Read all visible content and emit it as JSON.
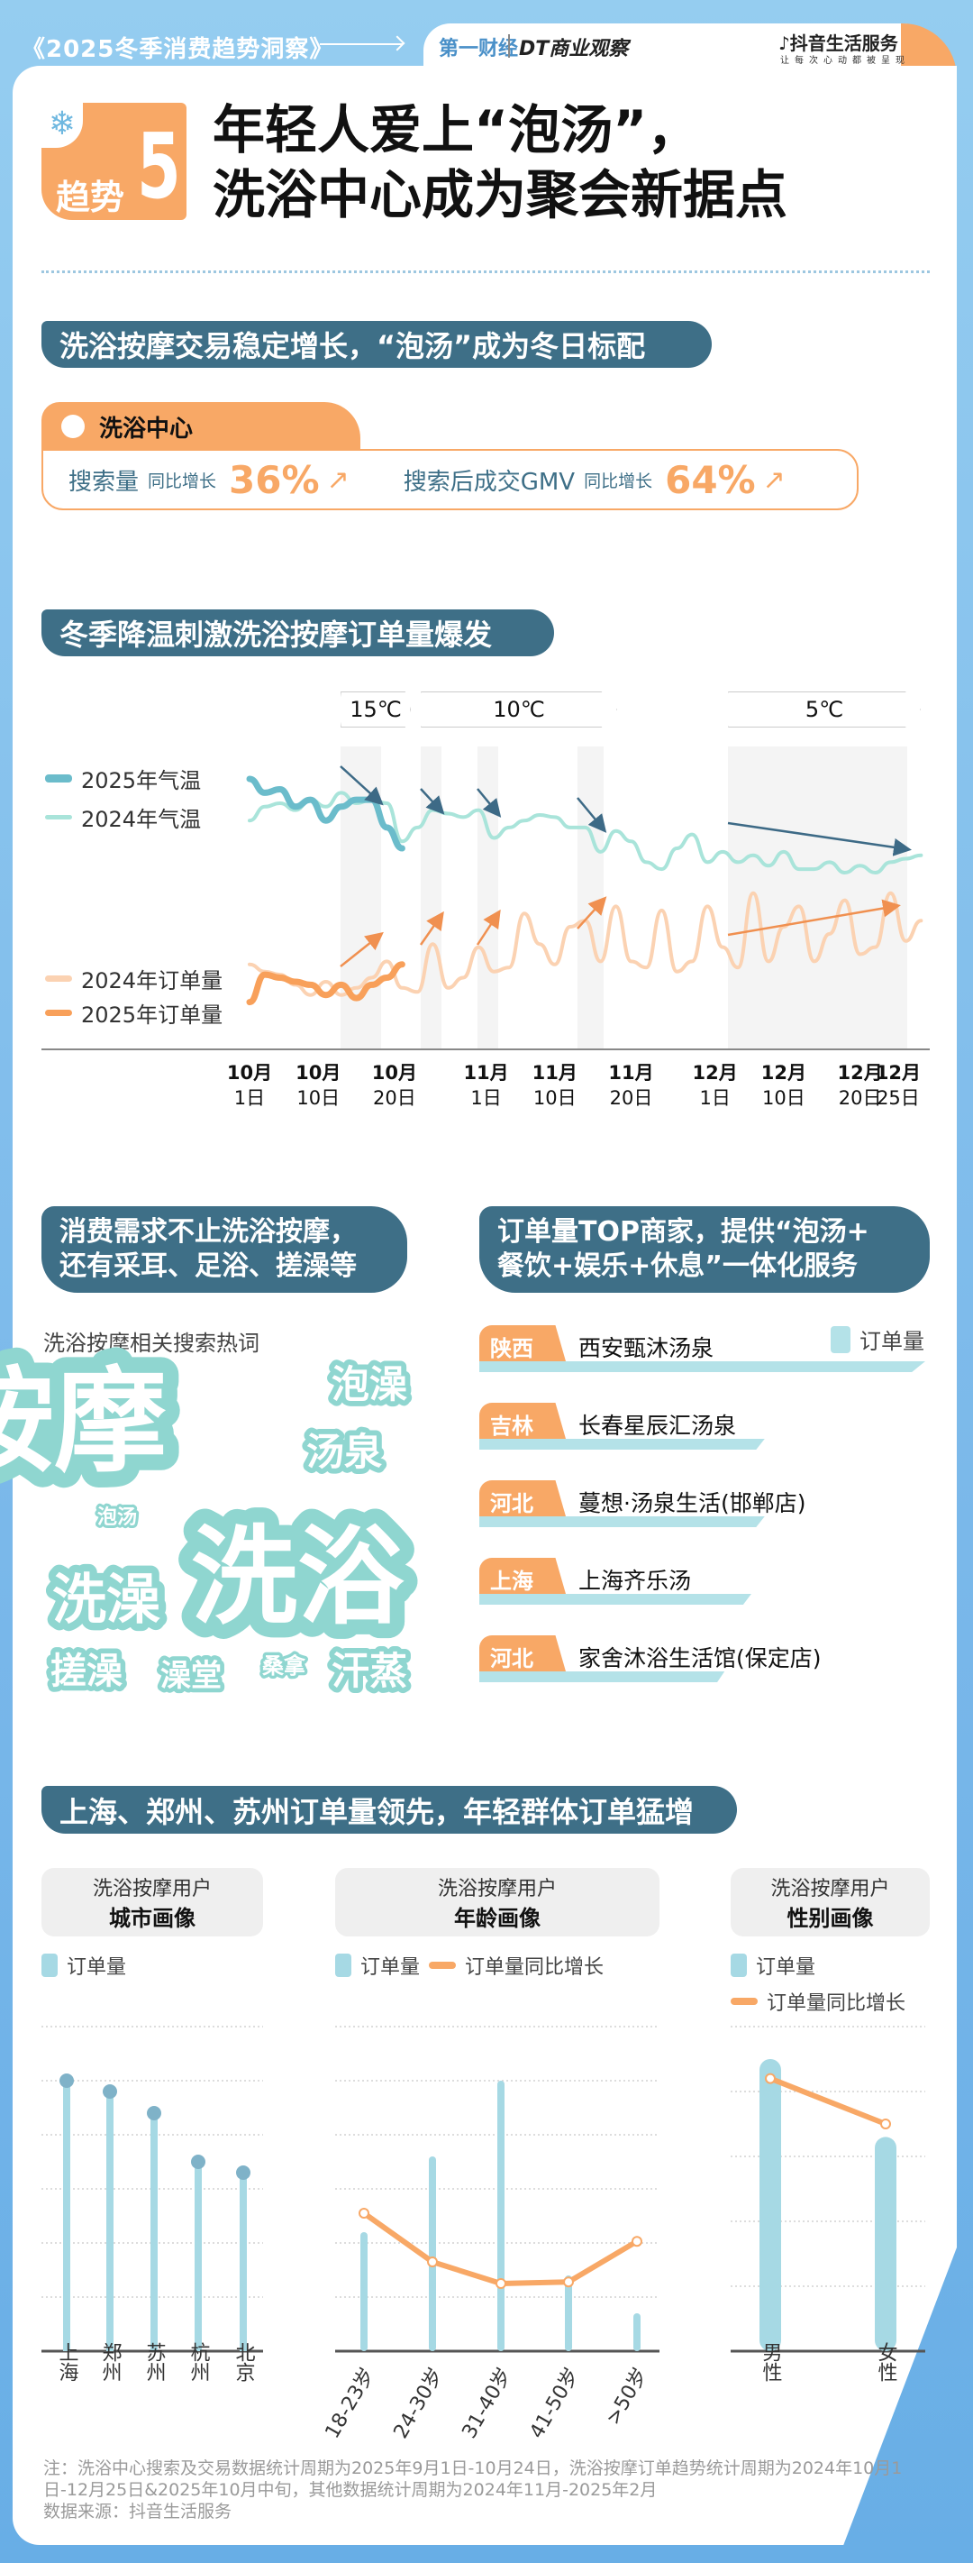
{
  "header": {
    "series_title": "《2025冬季消费趋势洞察》",
    "logo1": "第一财经",
    "logo2": "DT商业观察",
    "logo3": "抖音生活服务",
    "logo3_sub": "让每次心动都被呈现"
  },
  "trend": {
    "label": "趋势",
    "number": "5",
    "title_line1": "年轻人爱上“泡汤”，",
    "title_line2": "洗浴中心成为聚会新据点"
  },
  "section1": {
    "title": "洗浴按摩交易稳定增长，“泡汤”成为冬日标配",
    "tab": "洗浴中心",
    "metrics": [
      {
        "label": "搜索量",
        "sub": "同比增长",
        "value": "36%"
      },
      {
        "label": "搜索后成交GMV",
        "sub": "同比增长",
        "value": "64%"
      }
    ]
  },
  "section2": {
    "title": "冬季降温刺激洗浴按摩订单量爆发",
    "chips": [
      "15℃",
      "10℃",
      "5℃"
    ]
  },
  "chart_data": [
    {
      "type": "line",
      "legend": [
        "2025年气温",
        "2024年气温",
        "2024年订单量",
        "2025年订单量"
      ],
      "x_ticks": [
        {
          "m": "10月",
          "d": "1日",
          "day": 0
        },
        {
          "m": "10月",
          "d": "10日",
          "day": 9
        },
        {
          "m": "10月",
          "d": "20日",
          "day": 19
        },
        {
          "m": "11月",
          "d": "1日",
          "day": 31
        },
        {
          "m": "11月",
          "d": "10日",
          "day": 40
        },
        {
          "m": "11月",
          "d": "20日",
          "day": 50
        },
        {
          "m": "12月",
          "d": "1日",
          "day": 61
        },
        {
          "m": "12月",
          "d": "10日",
          "day": 70
        },
        {
          "m": "12月",
          "d": "20日",
          "day": 80
        },
        {
          "m": "12月",
          "d": "25日",
          "day": 85
        }
      ],
      "x_step_days": 2,
      "colors": {
        "temp2025": "#6bbccb",
        "temp2024": "#a9e4da",
        "order2024": "#fbd2b2",
        "order2025": "#f8a05a",
        "arrowTemp": "#3d6a86",
        "arrowOrder": "#f09050"
      },
      "series": [
        {
          "name": "2024年气温",
          "values": [
            14,
            16,
            16.5,
            15.5,
            17,
            16,
            18,
            16.5,
            17,
            16.5,
            11,
            13,
            15.5,
            15,
            14.5,
            15.5,
            11.5,
            13,
            14,
            14.8,
            14.5,
            13,
            13,
            9.5,
            12.5,
            11,
            8,
            7,
            10,
            12,
            8,
            9.5,
            8,
            9,
            7.5,
            9.5,
            7,
            7,
            8,
            6.5,
            7.5,
            6.5,
            8,
            8.5,
            9
          ]
        },
        {
          "name": "2025年气温",
          "values": [
            20,
            18,
            18.5,
            16,
            17,
            14,
            16,
            17,
            17,
            13,
            10
          ]
        },
        {
          "name": "2024年订单量",
          "values": [
            40,
            33,
            30,
            20,
            10,
            23,
            10,
            17,
            27,
            43,
            17,
            13,
            60,
            17,
            27,
            57,
            33,
            37,
            90,
            60,
            40,
            77,
            83,
            43,
            97,
            43,
            37,
            93,
            33,
            43,
            97,
            57,
            37,
            110,
            43,
            77,
            97,
            43,
            70,
            103,
            50,
            57,
            110,
            63,
            83
          ]
        },
        {
          "name": "2025年订单量",
          "values": [
            3,
            30,
            27,
            23,
            20,
            10,
            20,
            7,
            20,
            27,
            40
          ]
        }
      ]
    },
    {
      "type": "bar",
      "title": "洗浴按摩用户",
      "subtitle": "城市画像",
      "legend": [
        "订单量"
      ],
      "categories": [
        "上海",
        "郑州",
        "苏州",
        "杭州",
        "北京"
      ],
      "values": [
        5.0,
        4.8,
        4.4,
        3.5,
        3.3
      ],
      "ylim": [
        0,
        6
      ]
    },
    {
      "type": "bar+line",
      "title": "洗浴按摩用户",
      "subtitle": "年龄画像",
      "legend": [
        "订单量",
        "订单量同比增长"
      ],
      "categories": [
        "18-23岁",
        "24-30岁",
        "31-40岁",
        "41-50岁",
        ">50岁"
      ],
      "values": [
        2.2,
        3.6,
        5.0,
        1.4,
        0.7
      ],
      "growth": [
        2.55,
        1.65,
        1.25,
        1.28,
        2.03
      ],
      "ylim": [
        0,
        6
      ]
    },
    {
      "type": "bar+line",
      "title": "洗浴按摩用户",
      "subtitle": "性别画像",
      "legend": [
        "订单量",
        "订单量同比增长"
      ],
      "categories": [
        "男性",
        "女性"
      ],
      "values": [
        4.5,
        3.3
      ],
      "growth": [
        4.2,
        3.5
      ],
      "ylim": [
        0,
        5
      ]
    }
  ],
  "section3": {
    "title_line1": "消费需求不止洗浴按摩，",
    "title_line2": "还有采耳、足浴、搓澡等",
    "hot_label": "洗浴按摩相关搜索热词",
    "words": [
      "按摩",
      "泡澡",
      "汤泉",
      "泡汤",
      "洗澡",
      "洗浴",
      "搓澡",
      "澡堂",
      "桑拿",
      "汗蒸"
    ]
  },
  "section4": {
    "title_line1": "订单量TOP商家，提供“泡汤+",
    "title_line2": "餐饮+娱乐+休息”一体化服务",
    "legend": "订单量",
    "merchants": [
      {
        "region": "陕西",
        "name": "西安甄沐汤泉",
        "orders": 100
      },
      {
        "region": "吉林",
        "name": "长春星辰汇汤泉",
        "orders": 64
      },
      {
        "region": "河北",
        "name": "蔓想·汤泉生活(邯郸店)",
        "orders": 64
      },
      {
        "region": "上海",
        "name": "上海齐乐汤",
        "orders": 61
      },
      {
        "region": "河北",
        "name": "家舍沐浴生活馆(保定店)",
        "orders": 55
      }
    ]
  },
  "section5": {
    "title": "上海、郑州、苏州订单量领先，年轻群体订单猛增"
  },
  "footnote": {
    "line1": "注：洗浴中心搜索及交易数据统计周期为2025年9月1日-10月24日，洗浴按摩订单趋势统计周期为2024年10月1日-12月25日&2025年10月中旬，其他数据统计周期为2024年11月-2025年2月",
    "line2": "数据来源：抖音生活服务"
  },
  "colors": {
    "dark": "#3e6f87",
    "orange": "#f8a866",
    "teal": "#86d3cf",
    "bar": "#a6d9e4",
    "bg": "#8ecbef"
  }
}
